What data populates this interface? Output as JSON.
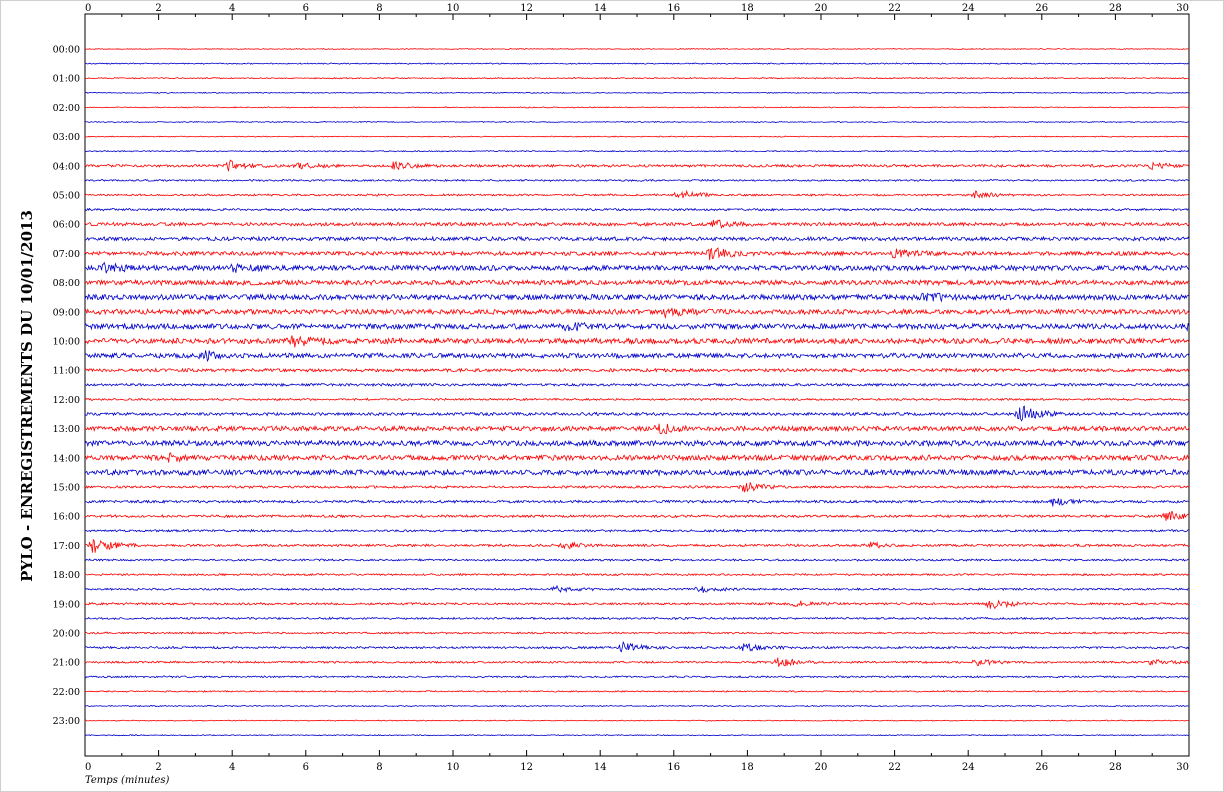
{
  "chart_data": {
    "type": "line",
    "title": "PYLO - ENREGISTREMENTS DU 10/01/2013",
    "xlabel": "Temps (minutes)",
    "ylabel": "",
    "xlim": [
      0,
      30
    ],
    "x_ticks": [
      "0",
      "2",
      "4",
      "6",
      "8",
      "10",
      "12",
      "14",
      "16",
      "18",
      "20",
      "22",
      "24",
      "26",
      "28",
      "30"
    ],
    "hour_labels": [
      "00:00",
      "01:00",
      "02:00",
      "03:00",
      "04:00",
      "05:00",
      "06:00",
      "07:00",
      "08:00",
      "09:00",
      "10:00",
      "11:00",
      "12:00",
      "13:00",
      "14:00",
      "15:00",
      "16:00",
      "17:00",
      "18:00",
      "19:00",
      "20:00",
      "21:00",
      "22:00",
      "23:00"
    ],
    "trace_count": 48,
    "trace_minutes": 30,
    "trace_colors": [
      "#ff0000",
      "#0000cc"
    ],
    "noise_levels": [
      0.4,
      0.5,
      0.5,
      0.4,
      0.4,
      0.4,
      0.4,
      0.5,
      1.2,
      0.8,
      0.9,
      1.0,
      1.6,
      1.8,
      1.9,
      2.4,
      2.3,
      2.6,
      2.4,
      2.6,
      2.6,
      2.3,
      1.5,
      1.2,
      0.9,
      1.4,
      2.3,
      2.6,
      2.5,
      2.6,
      1.1,
      1.2,
      1.2,
      1.0,
      1.1,
      0.9,
      0.9,
      0.9,
      1.0,
      0.9,
      0.8,
      1.0,
      0.9,
      0.8,
      0.6,
      0.5,
      0.4,
      0.4
    ],
    "events": [
      {
        "trace": 8,
        "minute": 3.9,
        "amp": 5
      },
      {
        "trace": 8,
        "minute": 5.8,
        "amp": 3
      },
      {
        "trace": 8,
        "minute": 8.4,
        "amp": 4
      },
      {
        "trace": 8,
        "minute": 29.0,
        "amp": 3
      },
      {
        "trace": 10,
        "minute": 16.1,
        "amp": 5
      },
      {
        "trace": 10,
        "minute": 24.2,
        "amp": 3
      },
      {
        "trace": 12,
        "minute": 17.1,
        "amp": 4
      },
      {
        "trace": 14,
        "minute": 17.0,
        "amp": 6
      },
      {
        "trace": 14,
        "minute": 22.0,
        "amp": 4
      },
      {
        "trace": 15,
        "minute": 0.5,
        "amp": 4
      },
      {
        "trace": 15,
        "minute": 4.0,
        "amp": 4
      },
      {
        "trace": 17,
        "minute": 22.8,
        "amp": 4
      },
      {
        "trace": 18,
        "minute": 15.8,
        "amp": 4
      },
      {
        "trace": 19,
        "minute": 13.1,
        "amp": 4
      },
      {
        "trace": 19,
        "minute": 30.0,
        "amp": 4
      },
      {
        "trace": 20,
        "minute": 5.6,
        "amp": 5
      },
      {
        "trace": 21,
        "minute": 3.2,
        "amp": 5
      },
      {
        "trace": 25,
        "minute": 25.4,
        "amp": 9
      },
      {
        "trace": 26,
        "minute": 15.6,
        "amp": 4
      },
      {
        "trace": 28,
        "minute": 2.3,
        "amp": 3
      },
      {
        "trace": 30,
        "minute": 17.9,
        "amp": 5
      },
      {
        "trace": 31,
        "minute": 26.3,
        "amp": 4
      },
      {
        "trace": 32,
        "minute": 29.4,
        "amp": 5
      },
      {
        "trace": 34,
        "minute": 0.2,
        "amp": 8
      },
      {
        "trace": 34,
        "minute": 13.0,
        "amp": 3
      },
      {
        "trace": 34,
        "minute": 21.3,
        "amp": 3
      },
      {
        "trace": 37,
        "minute": 12.8,
        "amp": 3
      },
      {
        "trace": 37,
        "minute": 16.7,
        "amp": 4
      },
      {
        "trace": 38,
        "minute": 19.3,
        "amp": 3
      },
      {
        "trace": 38,
        "minute": 24.6,
        "amp": 5
      },
      {
        "trace": 41,
        "minute": 14.6,
        "amp": 5
      },
      {
        "trace": 41,
        "minute": 17.9,
        "amp": 4
      },
      {
        "trace": 42,
        "minute": 18.8,
        "amp": 5
      },
      {
        "trace": 42,
        "minute": 24.2,
        "amp": 3
      },
      {
        "trace": 42,
        "minute": 29.0,
        "amp": 3
      }
    ],
    "grid": false,
    "legend": "none"
  }
}
